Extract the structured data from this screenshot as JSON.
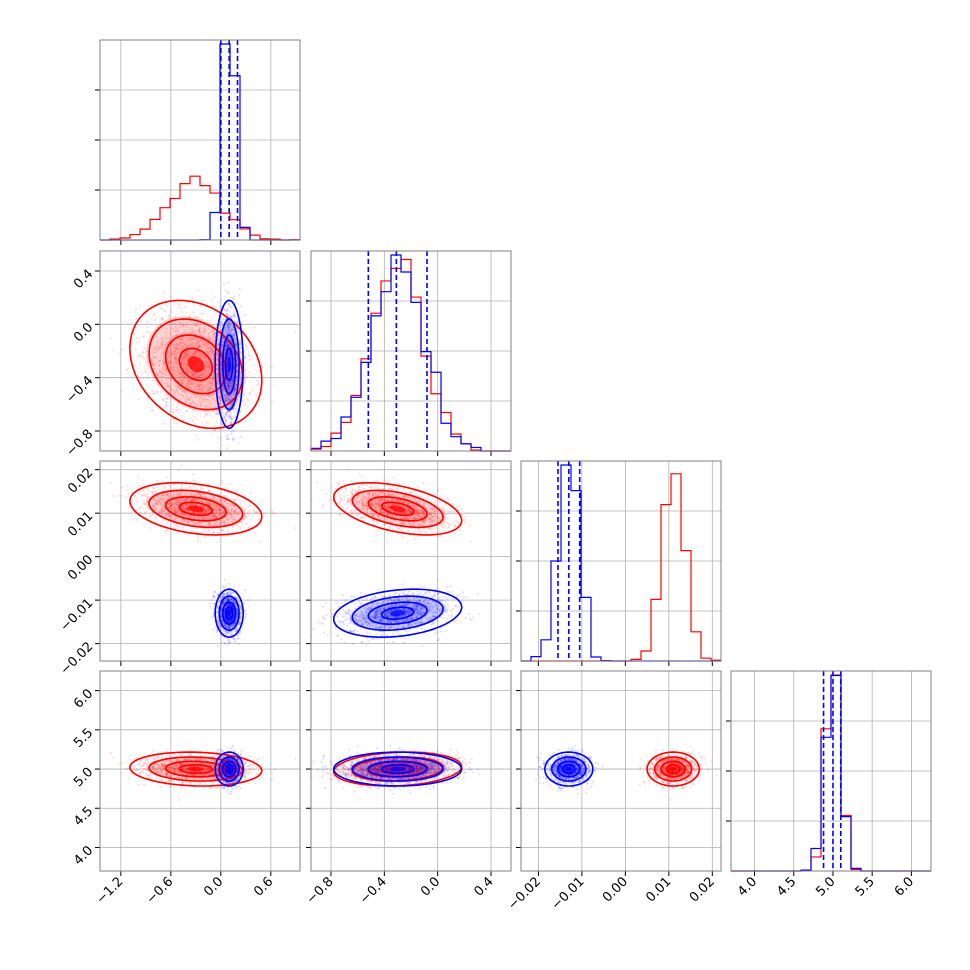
{
  "chart_data": {
    "type": "corner",
    "grid": true,
    "colors": {
      "series_a": "#ff0000",
      "series_b": "#0000ff",
      "grid": "#b0b0b0",
      "frame": "#808080"
    },
    "parameters": [
      {
        "range": [
          -1.45,
          0.95
        ],
        "ticks": [
          -1.2,
          -0.6,
          0.0,
          0.6
        ],
        "tick_labels": [
          "−1.2",
          "−0.6",
          "0.0",
          "0.6"
        ]
      },
      {
        "range": [
          -0.95,
          0.55
        ],
        "ticks": [
          -0.8,
          -0.4,
          0.0,
          0.4
        ],
        "tick_labels": [
          "−0.8",
          "−0.4",
          "0.0",
          "0.4"
        ]
      },
      {
        "range": [
          -0.024,
          0.022
        ],
        "ticks": [
          -0.02,
          -0.01,
          0.0,
          0.01,
          0.02
        ],
        "tick_labels": [
          "−0.02",
          "−0.01",
          "0.00",
          "0.01",
          "0.02"
        ]
      },
      {
        "range": [
          3.7,
          6.25
        ],
        "ticks": [
          4.0,
          4.5,
          5.0,
          5.5,
          6.0
        ],
        "tick_labels": [
          "4.0",
          "4.5",
          "5.0",
          "5.5",
          "6.0"
        ]
      }
    ],
    "series_b_quantiles": [
      [
        0.0,
        0.1,
        0.2
      ],
      [
        -0.52,
        -0.31,
        -0.08
      ],
      [
        -0.0155,
        -0.013,
        -0.0105
      ],
      [
        4.88,
        5.0,
        5.1
      ]
    ],
    "series": [
      {
        "name": "",
        "color": "#ff0000",
        "mean": [
          -0.3,
          -0.3,
          0.011,
          5.0
        ],
        "std": [
          0.33,
          0.2,
          0.0025,
          0.09
        ],
        "corr": {
          "0-1": -0.25,
          "0-2": -0.3,
          "1-2": -0.45,
          "1-3": 0.15,
          "0-3": -0.1
        }
      },
      {
        "name": "",
        "color": "#0000ff",
        "mean": [
          0.1,
          -0.3,
          -0.013,
          5.0
        ],
        "std": [
          0.07,
          0.2,
          0.0023,
          0.09
        ],
        "corr": {
          "1-2": 0.25
        }
      }
    ]
  }
}
